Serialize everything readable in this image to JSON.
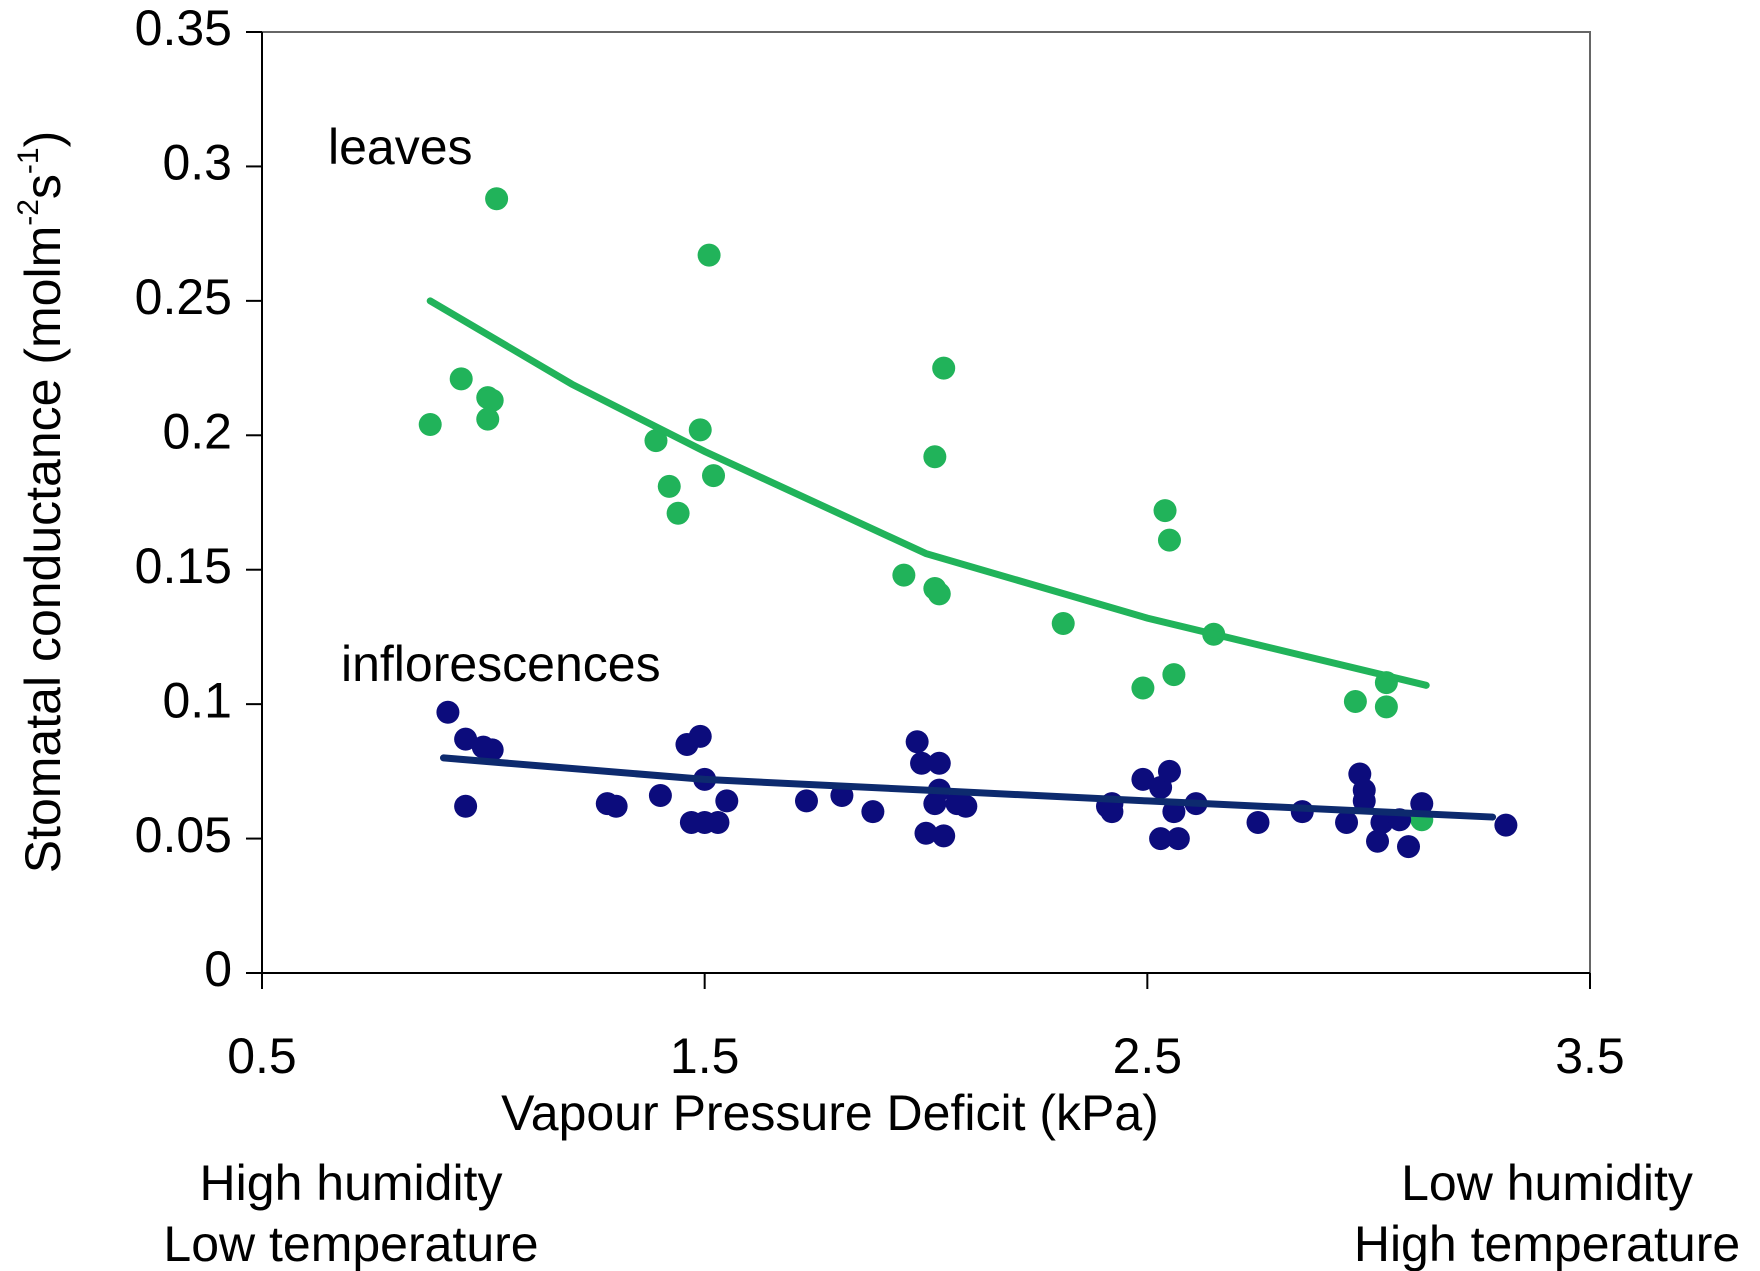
{
  "chart_data": {
    "type": "scatter",
    "x_label": "Vapour Pressure Deficit (kPa)",
    "y_label_parts": [
      "Stomatal conductance (molm",
      "-2",
      "s",
      "-1",
      ")"
    ],
    "annotations": [
      "leaves",
      "inflorescences"
    ],
    "notes_left": [
      "High humidity",
      "Low temperature"
    ],
    "notes_right": [
      "Low humidity",
      "High temperature"
    ],
    "xlim": [
      0.5,
      3.5
    ],
    "xticks": [
      0.5,
      1.5,
      2.5,
      3.5
    ],
    "ylim": [
      0,
      0.35
    ],
    "yticks": [
      0,
      0.05,
      0.1,
      0.15,
      0.2,
      0.25,
      0.3,
      0.35
    ],
    "series": [
      {
        "color": "#21b35a",
        "x": [
          0.88,
          0.95,
          1.01,
          1.02,
          1.01,
          1.03,
          1.39,
          1.42,
          1.44,
          1.49,
          1.51,
          1.52,
          2.04,
          2.02,
          1.95,
          2.02,
          2.03,
          2.31,
          2.54,
          2.55,
          2.49,
          2.56,
          2.65,
          2.97,
          3.04,
          3.04,
          3.12
        ],
        "values": [
          0.204,
          0.221,
          0.214,
          0.213,
          0.206,
          0.288,
          0.198,
          0.181,
          0.171,
          0.202,
          0.267,
          0.185,
          0.225,
          0.192,
          0.148,
          0.143,
          0.141,
          0.13,
          0.172,
          0.161,
          0.106,
          0.111,
          0.126,
          0.101,
          0.108,
          0.099,
          0.057
        ]
      },
      {
        "color": "#0c0c7c",
        "x": [
          0.92,
          0.96,
          1.0,
          1.02,
          0.96,
          1.28,
          1.3,
          1.4,
          1.46,
          1.49,
          1.5,
          1.47,
          1.5,
          1.53,
          1.55,
          1.73,
          1.81,
          1.88,
          1.98,
          1.99,
          2.03,
          2.03,
          2.02,
          2.0,
          2.04,
          2.07,
          2.09,
          2.41,
          2.42,
          2.42,
          2.49,
          2.53,
          2.55,
          2.56,
          2.53,
          2.57,
          2.61,
          2.75,
          2.85,
          2.95,
          2.98,
          2.99,
          2.99,
          3.02,
          3.03,
          3.07,
          3.09,
          3.12,
          3.31
        ],
        "values": [
          0.097,
          0.087,
          0.084,
          0.083,
          0.062,
          0.063,
          0.062,
          0.066,
          0.085,
          0.088,
          0.072,
          0.056,
          0.056,
          0.056,
          0.064,
          0.064,
          0.066,
          0.06,
          0.086,
          0.078,
          0.078,
          0.068,
          0.063,
          0.052,
          0.051,
          0.063,
          0.062,
          0.062,
          0.063,
          0.06,
          0.072,
          0.069,
          0.075,
          0.06,
          0.05,
          0.05,
          0.063,
          0.056,
          0.06,
          0.056,
          0.074,
          0.068,
          0.064,
          0.049,
          0.056,
          0.057,
          0.047,
          0.063,
          0.055
        ]
      }
    ],
    "trends": [
      {
        "color": "#21b35a",
        "x": [
          0.88,
          1.2,
          1.5,
          2.0,
          2.5,
          3.13
        ],
        "values": [
          0.25,
          0.219,
          0.194,
          0.156,
          0.132,
          0.107
        ]
      },
      {
        "color": "#0d2a6e",
        "x": [
          0.91,
          1.5,
          2.0,
          2.5,
          3.28
        ],
        "values": [
          0.08,
          0.072,
          0.068,
          0.064,
          0.058
        ]
      }
    ]
  }
}
